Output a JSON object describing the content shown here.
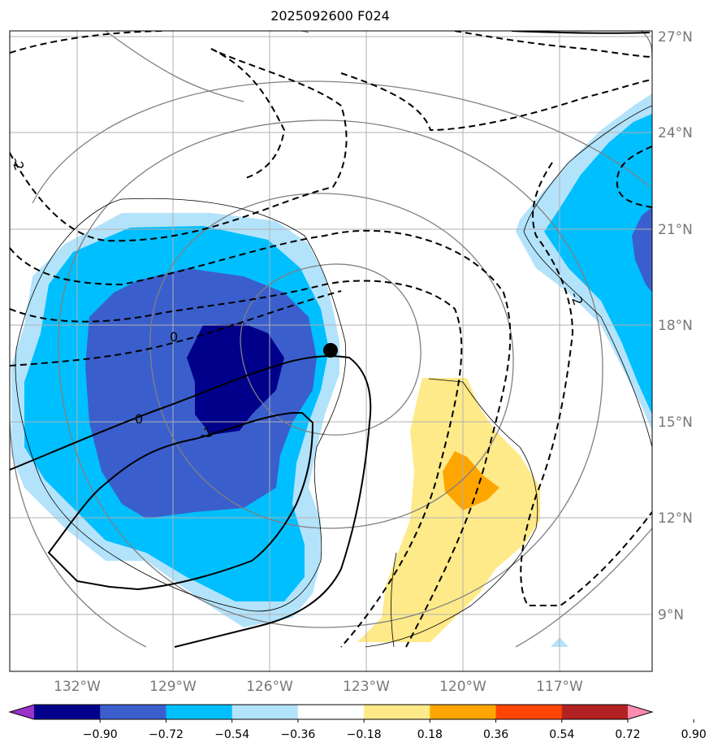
{
  "chart_data": {
    "type": "contour",
    "title": "2025092600 F024",
    "projection": "lat-lon map",
    "grid": true,
    "lon_ticks": [
      "132°W",
      "129°W",
      "126°W",
      "123°W",
      "120°W",
      "117°W"
    ],
    "lat_ticks": [
      "27°N",
      "24°N",
      "21°N",
      "18°N",
      "15°N",
      "12°N",
      "9°N"
    ],
    "colorbar": {
      "orientation": "horizontal",
      "extend": "both",
      "ticks": [
        "−0.90",
        "−0.72",
        "−0.54",
        "−0.36",
        "−0.18",
        "0.18",
        "0.36",
        "0.54",
        "0.72",
        "0.90"
      ],
      "colors": [
        "#9933cc",
        "#00008b",
        "#3a5fcd",
        "#00bfff",
        "#b3e3fb",
        "#ffffff",
        "#ffea8a",
        "#ffa500",
        "#ff4500",
        "#b22222",
        "#ff8cb0"
      ]
    },
    "contour_labels": [
      "0",
      "0",
      "-1",
      "-2",
      "-2"
    ],
    "storm_center": {
      "lon": -124.2,
      "lat": 17.2
    }
  }
}
